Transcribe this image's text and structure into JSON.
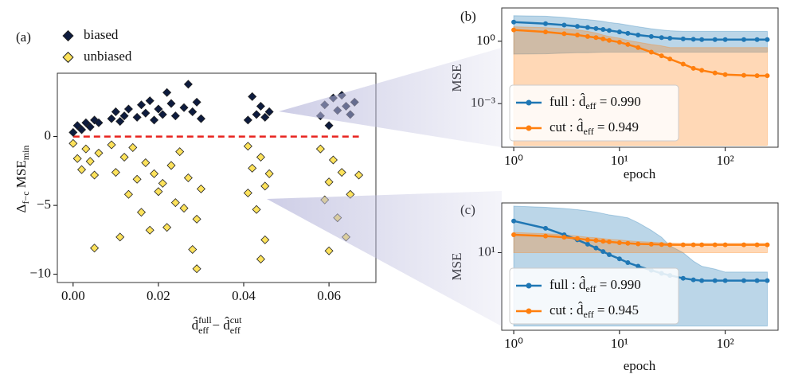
{
  "chart_data": [
    {
      "type": "scatter",
      "panel": "(a)",
      "xlim": [
        -0.0037,
        0.071
      ],
      "ylim": [
        -10.6,
        4.6
      ],
      "xticks": [
        {
          "value": 0,
          "label": "0.00"
        },
        {
          "value": 0.02,
          "label": "0.02"
        },
        {
          "value": 0.04,
          "label": "0.04"
        },
        {
          "value": 0.06,
          "label": "0.06"
        }
      ],
      "yticks": [
        {
          "value": -10,
          "label": "−10"
        },
        {
          "value": -5,
          "label": "−5"
        },
        0
      ],
      "xlabel": [
        {
          "text": "d̂",
          "sup": "full",
          "sub": "eff"
        },
        {
          "text": " − "
        },
        {
          "text": "d̂",
          "sup": "cut",
          "sub": "eff"
        }
      ],
      "ylabel": [
        {
          "text": "Δ"
        },
        {
          "text": "f−c",
          "sub": ""
        },
        {
          "text": " MSE"
        },
        {
          "text": "min",
          "sub": ""
        }
      ],
      "hline": {
        "y": 0,
        "x": [
          0,
          0.067
        ],
        "color": "#e8231f"
      },
      "series": [
        {
          "name": "biased",
          "color": "#0d1b3e",
          "x": [
            0.0,
            0.001,
            0.002,
            0.003,
            0.004,
            0.005,
            0.006,
            0.009,
            0.01,
            0.011,
            0.012,
            0.013,
            0.015,
            0.016,
            0.017,
            0.018,
            0.019,
            0.02,
            0.021,
            0.022,
            0.023,
            0.024,
            0.026,
            0.027,
            0.028,
            0.029,
            0.03,
            0.041,
            0.042,
            0.043,
            0.044,
            0.045,
            0.046,
            0.058,
            0.059,
            0.06,
            0.061,
            0.062,
            0.063,
            0.064,
            0.065,
            0.066
          ],
          "y": [
            0.3,
            0.8,
            0.5,
            1.0,
            0.7,
            1.2,
            1.0,
            1.3,
            1.8,
            1.1,
            1.5,
            2.0,
            1.4,
            2.3,
            1.7,
            2.6,
            1.2,
            2.0,
            1.6,
            3.2,
            2.4,
            1.5,
            2.1,
            3.8,
            1.8,
            2.5,
            1.3,
            1.2,
            2.9,
            1.6,
            2.2,
            1.4,
            1.8,
            1.5,
            2.3,
            0.8,
            2.8,
            1.9,
            3.0,
            2.2,
            1.6,
            2.5
          ]
        },
        {
          "name": "unbiased",
          "color": "#fde25b",
          "x": [
            0.0,
            0.001,
            0.002,
            0.003,
            0.004,
            0.005,
            0.005,
            0.006,
            0.009,
            0.01,
            0.011,
            0.012,
            0.013,
            0.014,
            0.015,
            0.016,
            0.017,
            0.018,
            0.019,
            0.02,
            0.021,
            0.022,
            0.023,
            0.024,
            0.025,
            0.026,
            0.027,
            0.028,
            0.029,
            0.029,
            0.03,
            0.041,
            0.041,
            0.042,
            0.043,
            0.044,
            0.044,
            0.045,
            0.046,
            0.045,
            0.058,
            0.059,
            0.06,
            0.06,
            0.061,
            0.062,
            0.063,
            0.064,
            0.065,
            0.067
          ],
          "y": [
            -0.5,
            -1.6,
            -2.4,
            -0.9,
            -1.8,
            -2.8,
            -8.1,
            -1.2,
            -0.6,
            -2.6,
            -7.3,
            -1.5,
            -4.2,
            -0.8,
            -3.1,
            -5.5,
            -1.9,
            -6.8,
            -2.7,
            -4.0,
            -3.4,
            -6.6,
            -2.1,
            -4.8,
            -1.1,
            -5.2,
            -3.0,
            -8.2,
            -6.0,
            -9.6,
            -3.8,
            -0.7,
            -4.1,
            -2.3,
            -5.3,
            -1.5,
            -8.9,
            -3.6,
            -2.7,
            -7.5,
            -0.9,
            -4.6,
            -3.3,
            -8.3,
            -1.7,
            -5.9,
            -2.6,
            -7.3,
            -4.2,
            -2.8
          ]
        }
      ]
    },
    {
      "type": "line",
      "panel": "(b)",
      "xscale": "log",
      "yscale": "log",
      "xlim": [
        0.77,
        316
      ],
      "ylim": [
        8e-06,
        40
      ],
      "xticks": [
        {
          "value": 1,
          "label": "10⁰"
        },
        {
          "value": 10,
          "label": "10¹"
        },
        {
          "value": 100,
          "label": "10²"
        }
      ],
      "yticks": [
        {
          "value": 0.001,
          "label": "10⁻³"
        },
        {
          "value": 1,
          "label": "10⁰"
        }
      ],
      "xlabel": "epoch",
      "ylabel": "MSE",
      "legend": "lower left",
      "x": [
        1,
        2,
        3,
        4,
        5,
        6,
        7,
        8,
        10,
        12,
        15,
        20,
        25,
        30,
        40,
        50,
        60,
        80,
        100,
        150,
        200,
        250
      ],
      "series": [
        {
          "label": [
            {
              "text": "full : "
            },
            {
              "text": "d̂",
              "sub": "eff"
            },
            {
              "text": " = 0.990"
            }
          ],
          "color": "#1f77b4",
          "values": [
            8.4,
            7,
            6,
            5.2,
            4.6,
            4.1,
            3.7,
            3.3,
            2.8,
            2.4,
            2.0,
            1.7,
            1.5,
            1.4,
            1.3,
            1.25,
            1.2,
            1.2,
            1.2,
            1.2,
            1.2,
            1.2
          ],
          "upper": [
            17,
            16,
            14,
            12,
            11,
            10,
            9,
            8,
            7,
            6,
            5,
            4,
            3.5,
            3.2,
            3,
            3,
            3,
            3,
            3,
            3,
            3,
            3
          ],
          "lower": [
            0.24,
            0.25,
            0.27,
            0.28,
            0.28,
            0.29,
            0.3,
            0.3,
            0.3,
            0.3,
            0.3,
            0.3,
            0.3,
            0.3,
            0.3,
            0.3,
            0.3,
            0.3,
            0.3,
            0.3,
            0.3,
            0.3
          ]
        },
        {
          "label": [
            {
              "text": "cut : "
            },
            {
              "text": "d̂",
              "sub": "eff"
            },
            {
              "text": " = 0.949"
            }
          ],
          "color": "#ff7f0e",
          "values": [
            3.5,
            2.8,
            2.3,
            2,
            1.7,
            1.5,
            1.3,
            1.1,
            0.9,
            0.7,
            0.5,
            0.3,
            0.2,
            0.14,
            0.08,
            0.05,
            0.04,
            0.03,
            0.025,
            0.023,
            0.022,
            0.022
          ],
          "upper": [
            5,
            4.5,
            4,
            3.5,
            3,
            2.5,
            2,
            1.7,
            1.4,
            1.1,
            0.9,
            0.7,
            0.6,
            0.5,
            0.5,
            0.5,
            0.5,
            0.5,
            0.5,
            0.5,
            0.5,
            0.5
          ],
          "lower": [
            1e-05,
            1e-05,
            1e-05,
            1e-05,
            1e-05,
            1e-05,
            1e-05,
            1e-05,
            1e-05,
            1e-05,
            1e-05,
            1e-05,
            1e-05,
            1e-05,
            1e-05,
            1e-05,
            1e-05,
            1e-05,
            1e-05,
            1e-05,
            1e-05,
            1e-05
          ]
        }
      ]
    },
    {
      "type": "line",
      "panel": "(c)",
      "xscale": "log",
      "yscale": "log",
      "xlim": [
        0.77,
        316
      ],
      "ylim": [
        1.3,
        37
      ],
      "xticks": [
        {
          "value": 1,
          "label": "10⁰"
        },
        {
          "value": 10,
          "label": "10¹"
        },
        {
          "value": 100,
          "label": "10²"
        }
      ],
      "yticks": [
        {
          "value": 10,
          "label": "10¹"
        }
      ],
      "xlabel": "epoch",
      "ylabel": "MSE",
      "legend": "lower left",
      "x": [
        1,
        2,
        3,
        4,
        5,
        6,
        7,
        8,
        10,
        12,
        15,
        20,
        25,
        30,
        40,
        50,
        60,
        80,
        100,
        150,
        200,
        250
      ],
      "series": [
        {
          "label": [
            {
              "text": "full : "
            },
            {
              "text": "d̂",
              "sub": "eff"
            },
            {
              "text": " = 0.990"
            }
          ],
          "color": "#1f77b4",
          "values": [
            23,
            19,
            16,
            14,
            12.5,
            11.3,
            10.3,
            9.5,
            8.5,
            7.7,
            7,
            6.3,
            5.8,
            5.5,
            5.1,
            4.9,
            4.8,
            4.8,
            4.8,
            4.8,
            4.8,
            4.8
          ],
          "upper": [
            34,
            33,
            32,
            31,
            30,
            29,
            28,
            27,
            26,
            25,
            22,
            18,
            15,
            12,
            10,
            8,
            7,
            6.5,
            6,
            6,
            6,
            6
          ],
          "lower": [
            1.45,
            1.45,
            1.45,
            1.45,
            1.45,
            1.45,
            1.45,
            1.45,
            1.45,
            1.45,
            1.45,
            1.45,
            1.45,
            1.45,
            1.45,
            1.45,
            1.45,
            1.45,
            1.45,
            1.45,
            1.45,
            1.45
          ]
        },
        {
          "label": [
            {
              "text": "cut : "
            },
            {
              "text": "d̂",
              "sub": "eff"
            },
            {
              "text": " = 0.945"
            }
          ],
          "color": "#ff7f0e",
          "values": [
            16,
            15.5,
            15,
            14.5,
            14,
            13.8,
            13.5,
            13.3,
            13,
            12.8,
            12.6,
            12.5,
            12.4,
            12.3,
            12.3,
            12.3,
            12.3,
            12.3,
            12.3,
            12.3,
            12.3,
            12.3
          ],
          "upper": [
            17,
            16.5,
            16,
            15.5,
            15,
            14.8,
            14.5,
            14.2,
            14,
            13.7,
            13.4,
            13.2,
            13,
            12.9,
            12.8,
            12.8,
            12.8,
            12.8,
            12.8,
            12.8,
            12.8,
            12.8
          ],
          "lower": [
            10,
            10,
            10,
            10,
            10,
            10,
            10,
            10,
            10,
            10,
            10,
            10,
            10,
            10,
            10,
            10,
            10,
            10,
            10,
            10,
            10,
            10
          ]
        }
      ]
    }
  ]
}
